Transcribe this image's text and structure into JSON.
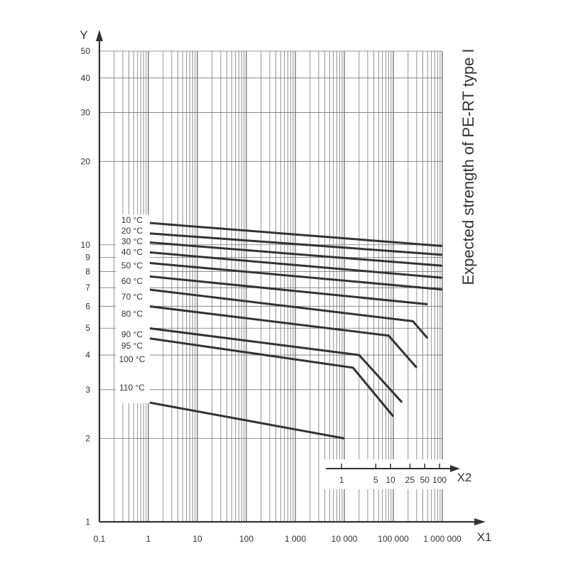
{
  "chart_data": {
    "type": "line",
    "title": "",
    "ylabel_right": "Expected strength of PE-RT type I",
    "y_axis_name": "Y",
    "x_axis_name": "X1",
    "x2_axis_name": "X2",
    "x_scale": "log",
    "y_scale": "log",
    "xlim": [
      0.1,
      1000000
    ],
    "ylim": [
      1,
      50
    ],
    "grid": true,
    "x_ticks": [
      {
        "value": 0.1,
        "label": "0,1"
      },
      {
        "value": 1,
        "label": "1"
      },
      {
        "value": 10,
        "label": "10"
      },
      {
        "value": 100,
        "label": "100"
      },
      {
        "value": 1000,
        "label": "1 000"
      },
      {
        "value": 10000,
        "label": "10 000"
      },
      {
        "value": 100000,
        "label": "100 000"
      },
      {
        "value": 1000000,
        "label": "1 000 000"
      }
    ],
    "y_ticks": [
      {
        "value": 1,
        "label": "1"
      },
      {
        "value": 2,
        "label": "2"
      },
      {
        "value": 3,
        "label": "3"
      },
      {
        "value": 4,
        "label": "4"
      },
      {
        "value": 5,
        "label": "5"
      },
      {
        "value": 6,
        "label": "6"
      },
      {
        "value": 7,
        "label": "7"
      },
      {
        "value": 8,
        "label": "8"
      },
      {
        "value": 9,
        "label": "9"
      },
      {
        "value": 10,
        "label": "10"
      },
      {
        "value": 20,
        "label": "20"
      },
      {
        "value": 30,
        "label": "30"
      },
      {
        "value": 40,
        "label": "40"
      },
      {
        "value": 50,
        "label": "50"
      }
    ],
    "x2_ticks": [
      {
        "value": 8760,
        "label": "1"
      },
      {
        "value": 43800,
        "label": "5"
      },
      {
        "value": 87600,
        "label": "10"
      },
      {
        "value": 219000,
        "label": "25"
      },
      {
        "value": 438000,
        "label": "50"
      },
      {
        "value": 876000,
        "label": "100"
      }
    ],
    "series": [
      {
        "name": "10 °C",
        "points": [
          [
            1,
            12.0
          ],
          [
            1000000,
            9.9
          ]
        ]
      },
      {
        "name": "20 °C",
        "points": [
          [
            1,
            11.0
          ],
          [
            1000000,
            9.2
          ]
        ]
      },
      {
        "name": "30 °C",
        "points": [
          [
            1,
            10.2
          ],
          [
            1000000,
            8.4
          ]
        ]
      },
      {
        "name": "40 °C",
        "points": [
          [
            1,
            9.4
          ],
          [
            1000000,
            7.6
          ]
        ]
      },
      {
        "name": "50 °C",
        "points": [
          [
            1,
            8.6
          ],
          [
            1000000,
            6.9
          ]
        ]
      },
      {
        "name": "60 °C",
        "points": [
          [
            1,
            7.7
          ],
          [
            500000,
            6.1
          ]
        ]
      },
      {
        "name": "70 °C",
        "points": [
          [
            1,
            6.9
          ],
          [
            250000,
            5.3
          ],
          [
            500000,
            4.6
          ]
        ]
      },
      {
        "name": "80 °C",
        "points": [
          [
            1,
            6.0
          ],
          [
            80000,
            4.7
          ],
          [
            300000,
            3.6
          ]
        ]
      },
      {
        "name": "90 °C",
        "points": [
          [
            1,
            5.0
          ],
          [
            20000,
            4.0
          ],
          [
            150000,
            2.7
          ]
        ]
      },
      {
        "name": "95 °C",
        "points": [
          [
            1,
            4.6
          ],
          [
            15000,
            3.6
          ],
          [
            100000,
            2.4
          ]
        ]
      },
      {
        "name": "100 °C",
        "points": []
      },
      {
        "name": "110 °C",
        "points": [
          [
            1,
            2.7
          ],
          [
            10000,
            2.0
          ]
        ]
      }
    ]
  }
}
